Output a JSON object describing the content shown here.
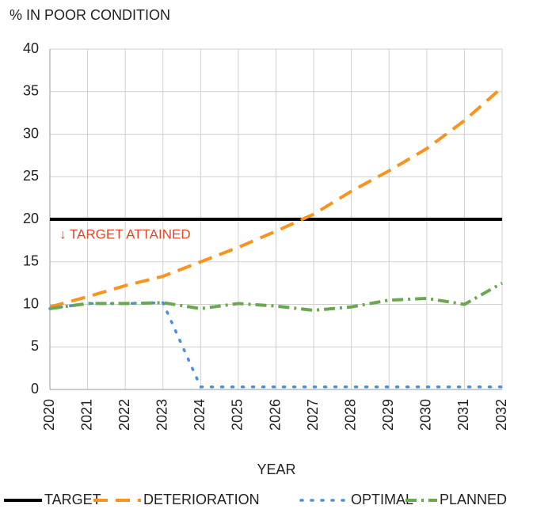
{
  "chart_data": {
    "type": "line",
    "y_label": "% IN POOR CONDITION",
    "x_label": "YEAR",
    "annotation": "↓ TARGET ATTAINED",
    "annotation_color": "#e04a2a",
    "x": [
      2020,
      2021,
      2022,
      2023,
      2024,
      2025,
      2026,
      2027,
      2028,
      2029,
      2030,
      2031,
      2032
    ],
    "xlim": [
      2020,
      2032
    ],
    "xticks": [
      2020,
      2021,
      2022,
      2023,
      2024,
      2025,
      2026,
      2027,
      2028,
      2029,
      2030,
      2031,
      2032
    ],
    "ylim": [
      0,
      40
    ],
    "yticks": [
      0,
      5,
      10,
      15,
      20,
      25,
      30,
      35,
      40
    ],
    "grid": true,
    "legend": "bottom",
    "series": [
      {
        "name": "TARGET",
        "color": "#000000",
        "dash": "solid",
        "values": [
          20,
          20,
          20,
          20,
          20,
          20,
          20,
          20,
          20,
          20,
          20,
          20,
          20
        ]
      },
      {
        "name": "DETERIORATION",
        "color": "#f7941d",
        "dash": "dashed",
        "values": [
          9.7,
          10.9,
          12.2,
          13.3,
          15.0,
          16.7,
          18.6,
          20.6,
          23.3,
          25.7,
          28.3,
          31.6,
          35.5
        ]
      },
      {
        "name": "OPTIMAL",
        "color": "#4a90d9",
        "dash": "dotted",
        "values": [
          9.5,
          10.1,
          10.1,
          10.2,
          0.3,
          0.3,
          0.3,
          0.3,
          0.3,
          0.3,
          0.3,
          0.3,
          0.3
        ]
      },
      {
        "name": "PLANNED",
        "color": "#6aa84f",
        "dash": "dashdot",
        "values": [
          9.5,
          10.1,
          10.1,
          10.2,
          9.5,
          10.1,
          9.8,
          9.3,
          9.7,
          10.5,
          10.7,
          10.0,
          12.5
        ]
      }
    ]
  }
}
